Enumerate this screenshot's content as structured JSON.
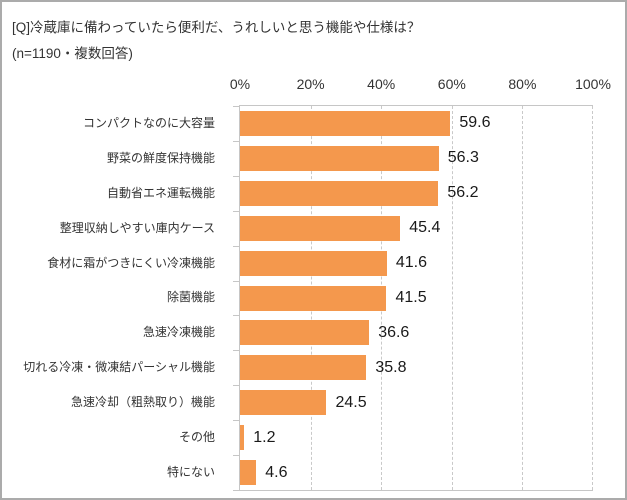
{
  "header": {
    "title_line1": "[Q]冷蔵庫に備わっていたら便利だ、うれしいと思う機能や仕様は？",
    "title_line2": "(n=1190・複数回答)"
  },
  "chart_data": {
    "type": "bar",
    "orientation": "horizontal",
    "title": "[Q]冷蔵庫に備わっていたら便利だ、うれしいと思う機能や仕様は？",
    "subtitle": "(n=1190・複数回答)",
    "sample_note": "n=1190",
    "categories": [
      "コンパクトなのに大容量",
      "野菜の鮮度保持機能",
      "自動省エネ運転機能",
      "整理収納しやすい庫内ケース",
      "食材に霜がつきにくい冷凍機能",
      "除菌機能",
      "急速冷凍機能",
      "切れる冷凍・微凍結パーシャル機能",
      "急速冷却（粗熱取り）機能",
      "その他",
      "特にない"
    ],
    "values": [
      59.6,
      56.3,
      56.2,
      45.4,
      41.6,
      41.5,
      36.6,
      35.8,
      24.5,
      1.2,
      4.6
    ],
    "value_labels": [
      "59.6",
      "56.3",
      "56.2",
      "45.4",
      "41.6",
      "41.5",
      "36.6",
      "35.8",
      "24.5",
      "1.2",
      "4.6"
    ],
    "x_tick_labels": [
      "0%",
      "20%",
      "40%",
      "60%",
      "80%",
      "100%"
    ],
    "xlim": [
      0,
      100
    ],
    "grid": {
      "vertical_dashed": true,
      "step_percent": 20
    },
    "legend": "none",
    "colors": {
      "bar": "#F4984D",
      "grid_line": "#C9C9C9",
      "axis_line": "#C6C6C6",
      "text": "#333333",
      "value_text": "#1a1a1a",
      "frame_border": "#ABABAB"
    }
  }
}
